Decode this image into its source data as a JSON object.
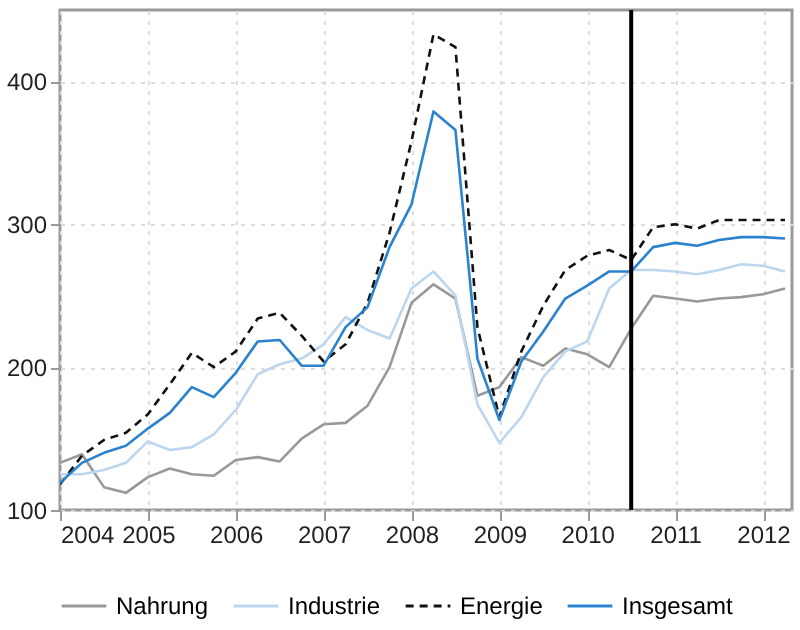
{
  "chart_data": {
    "type": "line",
    "x": [
      2004,
      2004.25,
      2004.5,
      2004.75,
      2005,
      2005.25,
      2005.5,
      2005.75,
      2006,
      2006.25,
      2006.5,
      2006.75,
      2007,
      2007.25,
      2007.5,
      2007.75,
      2008,
      2008.25,
      2008.5,
      2008.75,
      2009,
      2009.25,
      2009.5,
      2009.75,
      2010,
      2010.25,
      2010.5,
      2010.75,
      2011,
      2011.25,
      2011.5,
      2011.75,
      2012,
      2012.25
    ],
    "series": [
      {
        "name": "Nahrung",
        "color": "#999999",
        "line_style": "solid",
        "values": [
          133,
          139,
          116,
          112,
          123,
          129,
          125,
          124,
          135,
          137,
          134,
          150,
          160,
          161,
          173,
          200,
          245,
          258,
          248,
          180,
          186,
          207,
          201,
          213,
          209,
          200,
          227,
          250,
          248,
          246,
          248,
          249,
          251,
          255
        ]
      },
      {
        "name": "Industrie",
        "color": "#bcd6ef",
        "line_style": "solid",
        "values": [
          125,
          125,
          128,
          133,
          148,
          142,
          144,
          153,
          170,
          195,
          202,
          206,
          216,
          235,
          226,
          220,
          255,
          267,
          250,
          174,
          147,
          165,
          193,
          211,
          218,
          255,
          268,
          268,
          267,
          265,
          268,
          272,
          271,
          267
        ]
      },
      {
        "name": "Energie",
        "color": "#111111",
        "line_style": "dashed",
        "values": [
          118,
          138,
          149,
          154,
          167,
          188,
          210,
          200,
          211,
          234,
          238,
          222,
          204,
          216,
          245,
          294,
          358,
          433,
          424,
          228,
          165,
          211,
          243,
          268,
          278,
          282,
          275,
          298,
          300,
          297,
          303,
          303,
          303,
          303
        ]
      },
      {
        "name": "Insgesamt",
        "color": "#2b83cf",
        "line_style": "solid",
        "values": [
          119,
          133,
          140,
          145,
          157,
          168,
          186,
          179,
          196,
          218,
          219,
          201,
          201,
          228,
          242,
          284,
          314,
          379,
          366,
          206,
          163,
          204,
          225,
          248,
          257,
          267,
          267,
          284,
          287,
          285,
          289,
          291,
          291,
          290
        ]
      }
    ],
    "xlim": [
      2004,
      2012.33
    ],
    "xticks": [
      2004,
      2005,
      2006,
      2007,
      2008,
      2009,
      2010,
      2011,
      2012
    ],
    "ylim": [
      100,
      450
    ],
    "yticks": [
      100,
      200,
      300,
      400
    ],
    "ref_lines": [
      {
        "axis": "x",
        "value": 2010.5,
        "color": "#000000"
      }
    ],
    "grid": true,
    "legend": "bottom"
  }
}
